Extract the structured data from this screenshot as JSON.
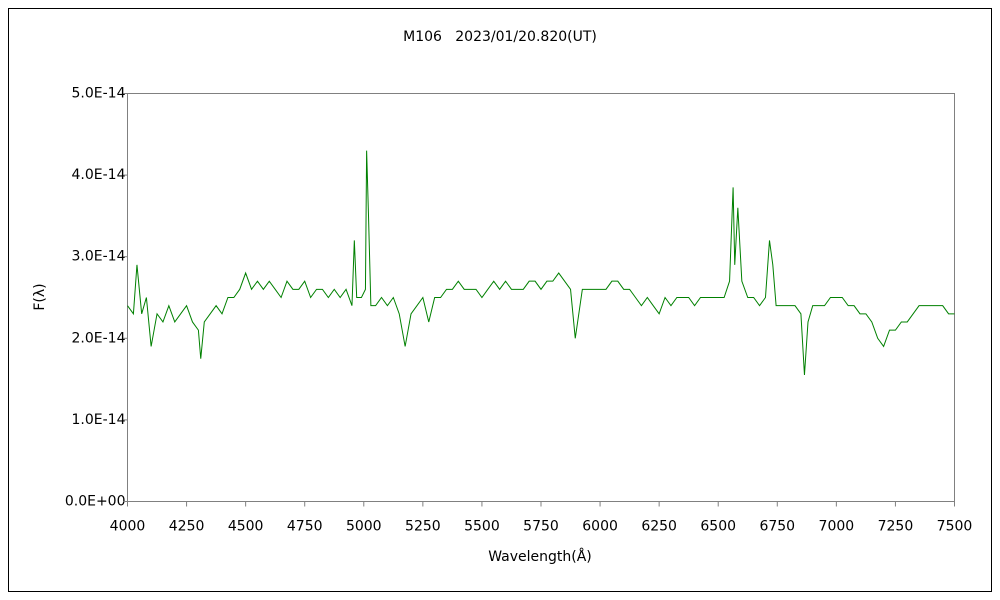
{
  "chart_data": {
    "type": "line",
    "title": "M106   2023/01/20.820(UT)",
    "xlabel": "Wavelength(Å)",
    "ylabel": "F(λ)",
    "color": "#008000",
    "grid": false,
    "xlim": [
      4000,
      7500
    ],
    "xticks": [
      4000,
      4250,
      4500,
      4750,
      5000,
      5250,
      5500,
      5750,
      6000,
      6250,
      6500,
      6750,
      7000,
      7250,
      7500
    ],
    "ylim": [
      0,
      5e-14
    ],
    "yticks": [
      {
        "value": 0,
        "label": "0.0E+00"
      },
      {
        "value": 1e-14,
        "label": "1.0E-14"
      },
      {
        "value": 2e-14,
        "label": "2.0E-14"
      },
      {
        "value": 3e-14,
        "label": "3.0E-14"
      },
      {
        "value": 4e-14,
        "label": "4.0E-14"
      },
      {
        "value": 5e-14,
        "label": "5.0E-14"
      }
    ],
    "x": [
      4000,
      4025,
      4040,
      4060,
      4080,
      4100,
      4125,
      4150,
      4175,
      4200,
      4225,
      4250,
      4275,
      4300,
      4310,
      4325,
      4350,
      4375,
      4400,
      4425,
      4450,
      4475,
      4500,
      4525,
      4550,
      4575,
      4600,
      4625,
      4650,
      4675,
      4700,
      4725,
      4750,
      4775,
      4800,
      4825,
      4850,
      4875,
      4900,
      4925,
      4950,
      4960,
      4970,
      4990,
      5007,
      5012,
      5020,
      5030,
      5050,
      5075,
      5100,
      5125,
      5150,
      5175,
      5200,
      5225,
      5250,
      5275,
      5300,
      5325,
      5350,
      5375,
      5400,
      5425,
      5450,
      5475,
      5500,
      5525,
      5550,
      5575,
      5600,
      5625,
      5650,
      5675,
      5700,
      5725,
      5750,
      5775,
      5800,
      5825,
      5850,
      5875,
      5895,
      5910,
      5925,
      5950,
      5975,
      6000,
      6025,
      6050,
      6075,
      6100,
      6125,
      6150,
      6175,
      6200,
      6225,
      6250,
      6275,
      6300,
      6325,
      6350,
      6375,
      6400,
      6425,
      6450,
      6475,
      6500,
      6525,
      6548,
      6563,
      6570,
      6583,
      6600,
      6625,
      6650,
      6675,
      6700,
      6717,
      6731,
      6745,
      6775,
      6800,
      6825,
      6850,
      6865,
      6880,
      6900,
      6925,
      6950,
      6975,
      7000,
      7025,
      7050,
      7075,
      7100,
      7125,
      7150,
      7175,
      7200,
      7225,
      7250,
      7275,
      7300,
      7325,
      7350,
      7375,
      7400,
      7425,
      7450,
      7475,
      7500
    ],
    "values": [
      2.4e-14,
      2.3e-14,
      2.9e-14,
      2.3e-14,
      2.5e-14,
      1.9e-14,
      2.3e-14,
      2.2e-14,
      2.4e-14,
      2.2e-14,
      2.3e-14,
      2.4e-14,
      2.2e-14,
      2.1e-14,
      1.75e-14,
      2.2e-14,
      2.3e-14,
      2.4e-14,
      2.3e-14,
      2.5e-14,
      2.5e-14,
      2.6e-14,
      2.8e-14,
      2.6e-14,
      2.7e-14,
      2.6e-14,
      2.7e-14,
      2.6e-14,
      2.5e-14,
      2.7e-14,
      2.6e-14,
      2.6e-14,
      2.7e-14,
      2.5e-14,
      2.6e-14,
      2.6e-14,
      2.5e-14,
      2.6e-14,
      2.5e-14,
      2.6e-14,
      2.4e-14,
      3.2e-14,
      2.5e-14,
      2.5e-14,
      2.6e-14,
      4.3e-14,
      3.5e-14,
      2.4e-14,
      2.4e-14,
      2.5e-14,
      2.4e-14,
      2.5e-14,
      2.3e-14,
      1.9e-14,
      2.3e-14,
      2.4e-14,
      2.5e-14,
      2.2e-14,
      2.5e-14,
      2.5e-14,
      2.6e-14,
      2.6e-14,
      2.7e-14,
      2.6e-14,
      2.6e-14,
      2.6e-14,
      2.5e-14,
      2.6e-14,
      2.7e-14,
      2.6e-14,
      2.7e-14,
      2.6e-14,
      2.6e-14,
      2.6e-14,
      2.7e-14,
      2.7e-14,
      2.6e-14,
      2.7e-14,
      2.7e-14,
      2.8e-14,
      2.7e-14,
      2.6e-14,
      2e-14,
      2.3e-14,
      2.6e-14,
      2.6e-14,
      2.6e-14,
      2.6e-14,
      2.6e-14,
      2.7e-14,
      2.7e-14,
      2.6e-14,
      2.6e-14,
      2.5e-14,
      2.4e-14,
      2.5e-14,
      2.4e-14,
      2.3e-14,
      2.5e-14,
      2.4e-14,
      2.5e-14,
      2.5e-14,
      2.5e-14,
      2.4e-14,
      2.5e-14,
      2.5e-14,
      2.5e-14,
      2.5e-14,
      2.5e-14,
      2.7e-14,
      3.85e-14,
      2.9e-14,
      3.6e-14,
      2.7e-14,
      2.5e-14,
      2.5e-14,
      2.4e-14,
      2.5e-14,
      3.2e-14,
      2.9e-14,
      2.4e-14,
      2.4e-14,
      2.4e-14,
      2.4e-14,
      2.3e-14,
      1.55e-14,
      2.2e-14,
      2.4e-14,
      2.4e-14,
      2.4e-14,
      2.5e-14,
      2.5e-14,
      2.5e-14,
      2.4e-14,
      2.4e-14,
      2.3e-14,
      2.3e-14,
      2.2e-14,
      2e-14,
      1.9e-14,
      2.1e-14,
      2.1e-14,
      2.2e-14,
      2.2e-14,
      2.3e-14,
      2.4e-14,
      2.4e-14,
      2.4e-14,
      2.4e-14,
      2.4e-14,
      2.3e-14,
      2.3e-14
    ]
  }
}
